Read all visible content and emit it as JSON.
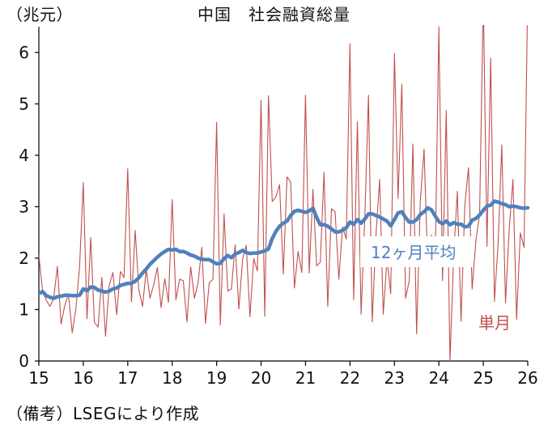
{
  "chart_data": {
    "type": "line",
    "title": "中国　社会融資総量",
    "unit_label": "（兆元）",
    "footnote": "（備考）LSEGにより作成",
    "xlabel": "",
    "ylabel": "",
    "xlim": [
      15,
      26
    ],
    "ylim": [
      0,
      6.5
    ],
    "x_ticks": [
      15,
      16,
      17,
      18,
      19,
      20,
      21,
      22,
      23,
      24,
      25,
      26
    ],
    "y_ticks": [
      0,
      1,
      2,
      3,
      4,
      5,
      6
    ],
    "grid": false,
    "legend": "inline labels",
    "series": [
      {
        "name": "単月",
        "color": "#c0504d",
        "start": 15,
        "step": 0.08333,
        "values": [
          2.05,
          1.37,
          1.18,
          1.06,
          1.22,
          1.84,
          0.72,
          1.08,
          1.3,
          0.55,
          1.02,
          1.83,
          3.47,
          0.82,
          2.4,
          0.75,
          0.66,
          1.63,
          0.48,
          1.47,
          1.72,
          0.9,
          1.74,
          1.62,
          3.74,
          1.15,
          2.54,
          1.39,
          1.06,
          1.78,
          1.22,
          1.48,
          1.82,
          1.04,
          1.6,
          1.14,
          3.14,
          1.19,
          1.59,
          1.56,
          0.76,
          1.83,
          1.22,
          1.52,
          2.21,
          0.73,
          1.52,
          1.59,
          4.64,
          0.7,
          2.86,
          1.36,
          1.4,
          2.26,
          1.01,
          1.98,
          2.25,
          0.86,
          1.99,
          1.75,
          5.07,
          0.87,
          5.16,
          3.1,
          3.19,
          3.43,
          1.69,
          3.58,
          3.48,
          1.42,
          2.13,
          1.72,
          5.17,
          1.71,
          3.34,
          1.85,
          1.92,
          3.67,
          1.06,
          2.96,
          2.9,
          1.59,
          2.61,
          2.37,
          6.17,
          1.19,
          4.65,
          0.91,
          2.79,
          5.17,
          0.76,
          2.43,
          3.53,
          0.91,
          1.99,
          1.31,
          5.98,
          3.16,
          5.38,
          1.22,
          1.56,
          4.22,
          0.53,
          3.12,
          4.12,
          1.85,
          2.45,
          1.94,
          6.5,
          1.56,
          4.87,
          0.0,
          2.06,
          3.3,
          0.77,
          3.03,
          3.76,
          1.4,
          2.34,
          2.85,
          7.06,
          2.23,
          5.89,
          1.16,
          2.29,
          4.2,
          1.13,
          2.57,
          3.53,
          0.81,
          2.49,
          2.21,
          7.22
        ]
      },
      {
        "name": "12ヶ月平均",
        "color": "#4f81bd",
        "start": 15,
        "step": 0.08333,
        "values": [
          1.31,
          1.35,
          1.27,
          1.24,
          1.22,
          1.25,
          1.26,
          1.28,
          1.28,
          1.27,
          1.27,
          1.28,
          1.4,
          1.37,
          1.44,
          1.43,
          1.38,
          1.36,
          1.34,
          1.36,
          1.4,
          1.42,
          1.47,
          1.49,
          1.51,
          1.51,
          1.55,
          1.62,
          1.71,
          1.79,
          1.88,
          1.95,
          2.02,
          2.08,
          2.13,
          2.17,
          2.16,
          2.17,
          2.13,
          2.13,
          2.1,
          2.06,
          2.04,
          2.0,
          1.98,
          1.97,
          1.97,
          1.93,
          1.89,
          1.9,
          1.99,
          2.05,
          2.01,
          2.08,
          2.11,
          2.15,
          2.11,
          2.09,
          2.1,
          2.1,
          2.12,
          2.14,
          2.18,
          2.38,
          2.52,
          2.62,
          2.68,
          2.72,
          2.83,
          2.91,
          2.93,
          2.91,
          2.89,
          2.92,
          2.97,
          2.79,
          2.65,
          2.65,
          2.62,
          2.57,
          2.51,
          2.51,
          2.54,
          2.59,
          2.7,
          2.66,
          2.75,
          2.68,
          2.76,
          2.86,
          2.86,
          2.83,
          2.8,
          2.76,
          2.72,
          2.63,
          2.75,
          2.88,
          2.9,
          2.79,
          2.7,
          2.7,
          2.75,
          2.85,
          2.9,
          2.98,
          2.94,
          2.82,
          2.71,
          2.67,
          2.72,
          2.65,
          2.69,
          2.66,
          2.66,
          2.61,
          2.62,
          2.74,
          2.77,
          2.84,
          2.93,
          3.01,
          3.03,
          3.11,
          3.09,
          3.06,
          3.04,
          3.0,
          3.01,
          3.0,
          2.98,
          2.97,
          2.98
        ]
      }
    ],
    "annotations": [
      {
        "text": "12ヶ月平均",
        "color": "#4f81bd"
      },
      {
        "text": "単月",
        "color": "#c0504d"
      }
    ]
  }
}
